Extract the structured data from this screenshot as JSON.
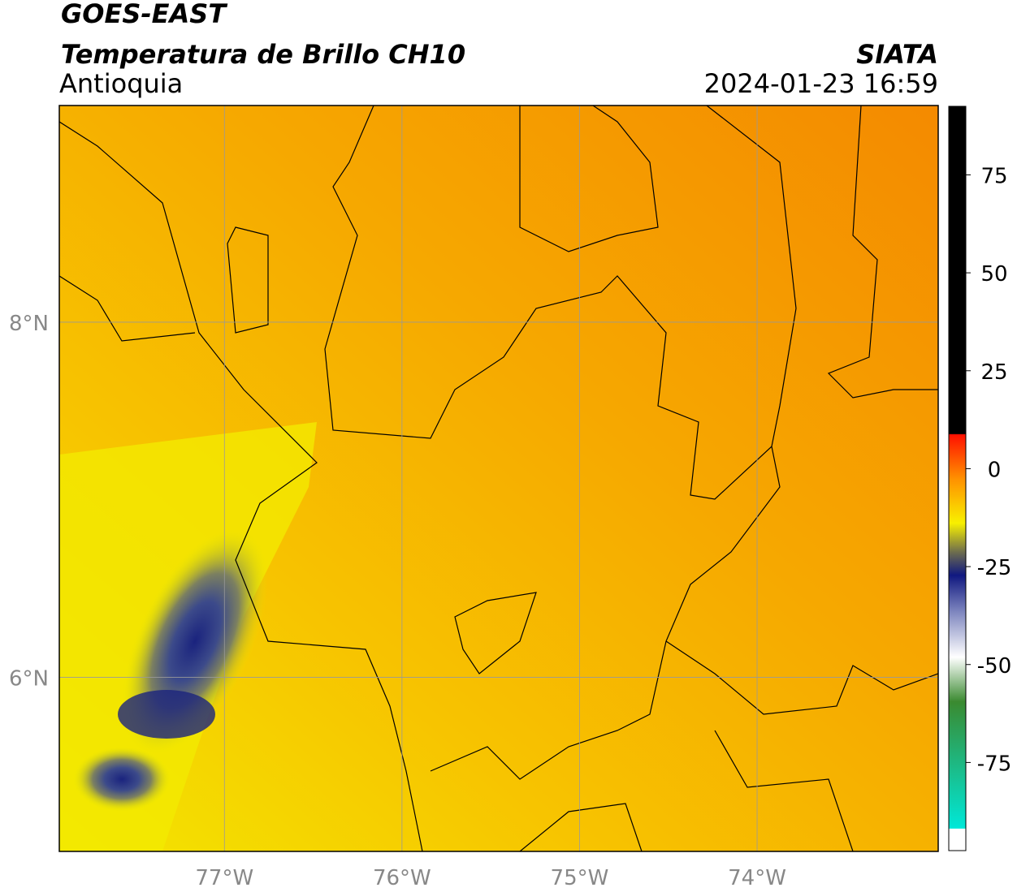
{
  "header": {
    "title": "GOES-EAST",
    "subtitle": "Temperatura de Brillo CH10",
    "region": "Antioquia",
    "source": "SIATA",
    "datetime": "2024-01-23 16:59"
  },
  "map": {
    "lonlim": [
      -77.93,
      -72.98
    ],
    "latlim": [
      5.02,
      9.22
    ],
    "lon_ticks": [
      {
        "value": -77,
        "label": "77°W"
      },
      {
        "value": -76,
        "label": "76°W"
      },
      {
        "value": -75,
        "label": "75°W"
      },
      {
        "value": -74,
        "label": "74°W"
      }
    ],
    "lat_ticks": [
      {
        "value": 8,
        "label": "8°N"
      },
      {
        "value": 6,
        "label": "6°N"
      }
    ]
  },
  "colorbar": {
    "clim": [
      -97.5,
      92.5
    ],
    "ticks": [
      75,
      50,
      25,
      0,
      -25,
      -50,
      -75
    ]
  }
}
